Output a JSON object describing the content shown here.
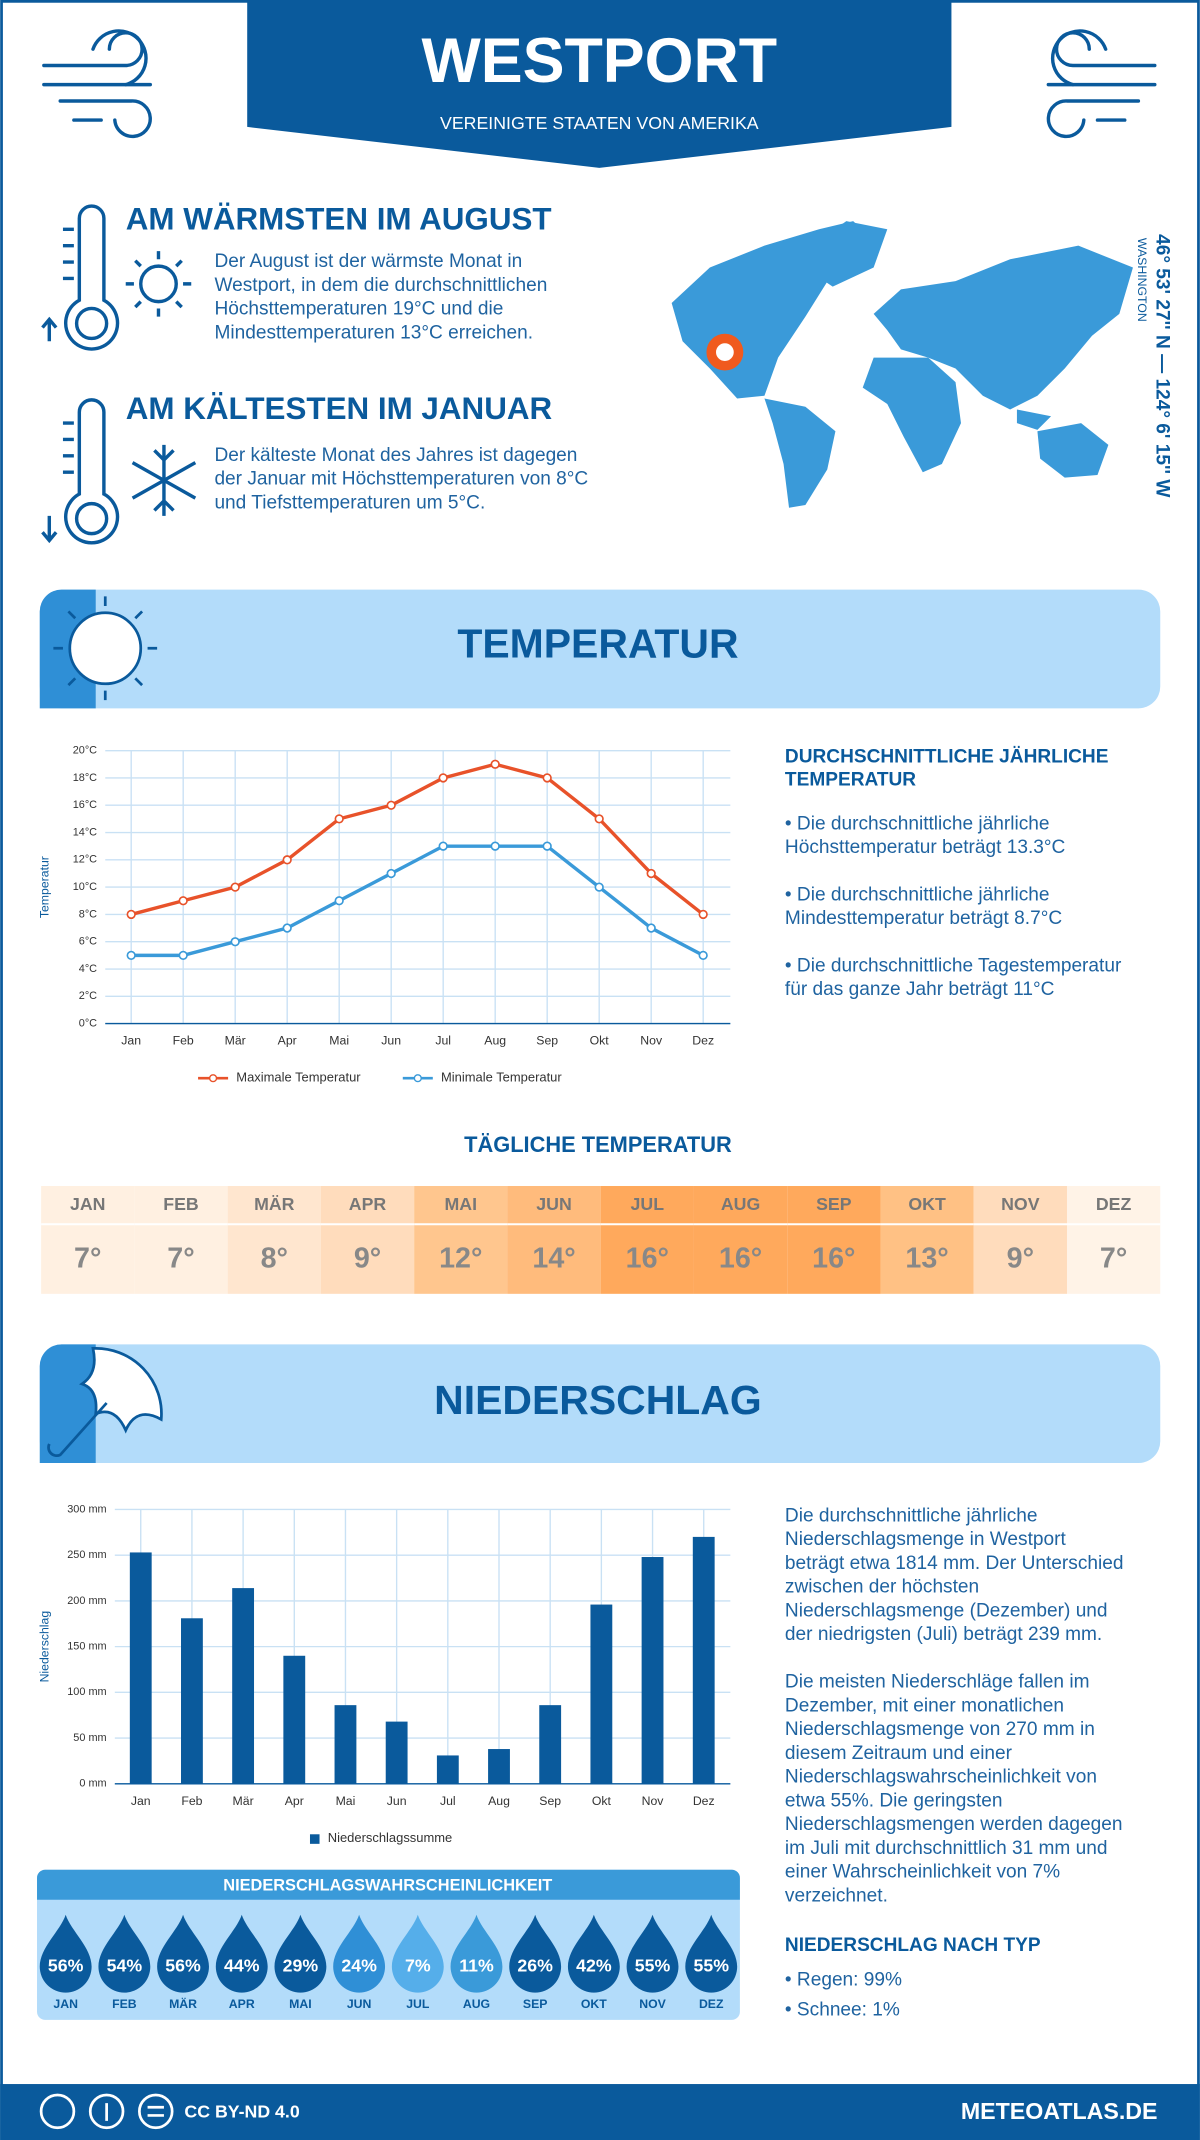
{
  "header": {
    "title": "WESTPORT",
    "subtitle": "VEREINIGTE STAATEN VON AMERIKA"
  },
  "warmest": {
    "title": "AM WÄRMSTEN IM AUGUST",
    "lines": [
      "Der August ist der wärmste Monat in",
      "Westport, in dem die durchschnittlichen",
      "Höchsttemperaturen 19°C und die",
      "Mindesttemperaturen 13°C erreichen."
    ]
  },
  "coldest": {
    "title": "AM KÄLTESTEN IM JANUAR",
    "lines": [
      "Der kälteste Monat des Jahres ist dagegen",
      "der Januar mit Höchsttemperaturen von 8°C",
      "und Tiefsttemperaturen um 5°C."
    ]
  },
  "location": {
    "coordinates": "46° 53' 27'' N — 124° 6' 15'' W",
    "region": "WASHINGTON"
  },
  "temperature_section": {
    "title": "TEMPERATUR"
  },
  "annual": {
    "title_lines": [
      "DURCHSCHNITTLICHE JÄHRLICHE",
      "TEMPERATUR"
    ],
    "bullets": [
      [
        "• Die durchschnittliche jährliche",
        "Höchsttemperatur beträgt 13.3°C"
      ],
      [
        "• Die durchschnittliche jährliche",
        "Mindesttemperatur beträgt 8.7°C"
      ],
      [
        "• Die durchschnittliche Tagestemperatur",
        "für das ganze Jahr beträgt 11°C"
      ]
    ]
  },
  "daily": {
    "title": "TÄGLICHE TEMPERATUR",
    "months": [
      "JAN",
      "FEB",
      "MÄR",
      "APR",
      "MAI",
      "JUN",
      "JUL",
      "AUG",
      "SEP",
      "OKT",
      "NOV",
      "DEZ"
    ],
    "values": [
      "7°",
      "7°",
      "8°",
      "9°",
      "12°",
      "14°",
      "16°",
      "16°",
      "16°",
      "13°",
      "9°",
      "7°"
    ],
    "colors": [
      "#fff0e1",
      "#fff0e1",
      "#ffe6cf",
      "#ffdcbc",
      "#ffc68e",
      "#ffbb7c",
      "#ffa95c",
      "#ffa95c",
      "#ffa95c",
      "#ffc184",
      "#ffdcbc",
      "#fff3e7"
    ]
  },
  "precipitation_section": {
    "title": "NIEDERSCHLAG"
  },
  "chart_data": [
    {
      "type": "line",
      "y_label": "Temperatur",
      "categories": [
        "Jan",
        "Feb",
        "Mär",
        "Apr",
        "Mai",
        "Jun",
        "Jul",
        "Aug",
        "Sep",
        "Okt",
        "Nov",
        "Dez"
      ],
      "series": [
        {
          "name": "Maximale Temperatur",
          "color": "#e8522a",
          "values": [
            8,
            9,
            10,
            12,
            15,
            16,
            18,
            19,
            18,
            15,
            11,
            8
          ]
        },
        {
          "name": "Minimale Temperatur",
          "color": "#3a9ad9",
          "values": [
            5,
            5,
            6,
            7,
            9,
            11,
            13,
            13,
            13,
            10,
            7,
            5
          ]
        }
      ],
      "ylim": [
        0,
        20
      ],
      "yticks": [
        {
          "value": 0,
          "label": "0°C"
        },
        {
          "value": 2,
          "label": "2°C"
        },
        {
          "value": 4,
          "label": "4°C"
        },
        {
          "value": 6,
          "label": "6°C"
        },
        {
          "value": 8,
          "label": "8°C"
        },
        {
          "value": 10,
          "label": "10°C"
        },
        {
          "value": 12,
          "label": "12°C"
        },
        {
          "value": 14,
          "label": "14°C"
        },
        {
          "value": 16,
          "label": "16°C"
        },
        {
          "value": 18,
          "label": "18°C"
        },
        {
          "value": 20,
          "label": "20°C"
        }
      ],
      "grid": true,
      "legend": "bottom"
    },
    {
      "type": "bar",
      "y_label": "Niederschlag",
      "categories": [
        "Jan",
        "Feb",
        "Mär",
        "Apr",
        "Mai",
        "Jun",
        "Jul",
        "Aug",
        "Sep",
        "Okt",
        "Nov",
        "Dez"
      ],
      "series": [
        {
          "name": "Niederschlagssumme",
          "color": "#0a5a9c",
          "values": [
            253,
            181,
            214,
            140,
            86,
            68,
            31,
            38,
            86,
            196,
            248,
            270
          ]
        }
      ],
      "ylim": [
        0,
        300
      ],
      "yticks": [
        {
          "value": 0,
          "label": "0 mm"
        },
        {
          "value": 50,
          "label": "50 mm"
        },
        {
          "value": 100,
          "label": "100 mm"
        },
        {
          "value": 150,
          "label": "150 mm"
        },
        {
          "value": 200,
          "label": "200 mm"
        },
        {
          "value": 250,
          "label": "250 mm"
        },
        {
          "value": 300,
          "label": "300 mm"
        }
      ],
      "grid": true,
      "legend": "bottom"
    }
  ],
  "precip_text": {
    "paragraphs": [
      [
        "Die durchschnittliche jährliche",
        "Niederschlagsmenge in Westport",
        "beträgt etwa 1814 mm. Der Unterschied",
        "zwischen der höchsten",
        "Niederschlagsmenge (Dezember) und",
        "der niedrigsten (Juli) beträgt 239 mm."
      ],
      [
        "Die meisten Niederschläge fallen im",
        "Dezember, mit einer monatlichen",
        "Niederschlagsmenge von 270 mm in",
        "diesem Zeitraum und einer",
        "Niederschlagswahrscheinlichkeit von",
        "etwa 55%. Die geringsten",
        "Niederschlagsmengen werden dagegen",
        "im Juli mit durchschnittlich 31 mm und",
        "einer Wahrscheinlichkeit von 7%",
        "verzeichnet."
      ]
    ],
    "type_title": "NIEDERSCHLAG NACH TYP",
    "type_items": [
      "• Regen: 99%",
      "• Schnee: 1%"
    ]
  },
  "probability": {
    "title": "NIEDERSCHLAGSWAHRSCHEINLICHKEIT",
    "months": [
      "JAN",
      "FEB",
      "MÄR",
      "APR",
      "MAI",
      "JUN",
      "JUL",
      "AUG",
      "SEP",
      "OKT",
      "NOV",
      "DEZ"
    ],
    "values": [
      "56%",
      "54%",
      "56%",
      "44%",
      "29%",
      "24%",
      "7%",
      "11%",
      "26%",
      "42%",
      "55%",
      "55%"
    ],
    "colors": [
      "#0a5a9c",
      "#0a5a9c",
      "#0a5a9c",
      "#0a5a9c",
      "#0a5a9c",
      "#2f8fd6",
      "#55aeea",
      "#3a9ad9",
      "#0a5a9c",
      "#0a5a9c",
      "#0a5a9c",
      "#0a5a9c"
    ]
  },
  "footer": {
    "license": "CC BY-ND 4.0",
    "site": "METEOATLAS.DE"
  }
}
